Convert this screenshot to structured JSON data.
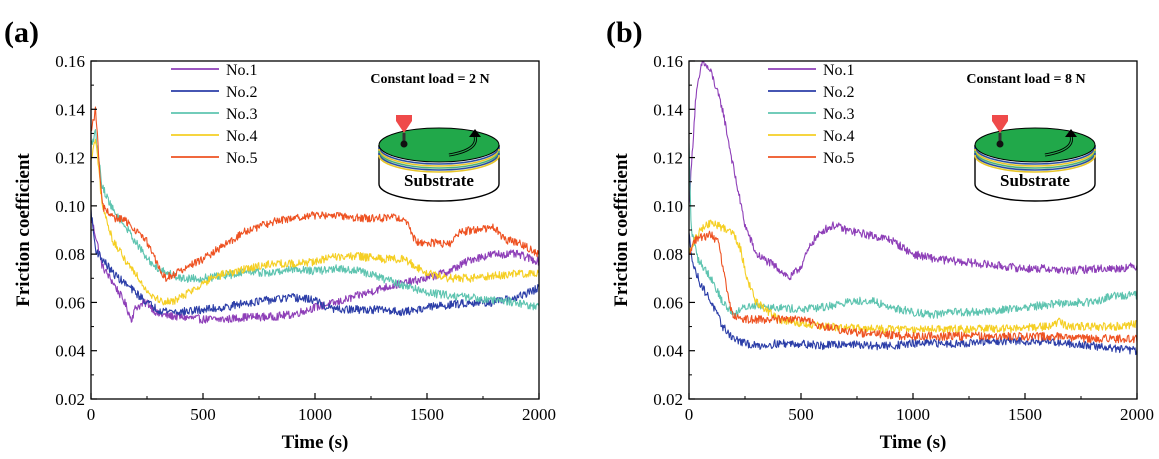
{
  "chart_data": [
    {
      "panel": "(a)",
      "type": "line",
      "xlabel": "Time (s)",
      "ylabel": "Friction coefficient",
      "xlim": [
        0,
        2000
      ],
      "ylim": [
        0.02,
        0.16
      ],
      "xticks": [
        0,
        500,
        1000,
        1500,
        2000
      ],
      "yticks": [
        0.02,
        0.04,
        0.06,
        0.08,
        0.1,
        0.12,
        0.14,
        0.16
      ],
      "ytick_labels": [
        "0.02",
        "0.04",
        "0.06",
        "0.08",
        "0.10",
        "0.12",
        "0.14",
        "0.16"
      ],
      "legend_position": "top-left",
      "inset": {
        "title": "Constant load = 2 N",
        "label": "Substrate"
      },
      "series": [
        {
          "name": "No.1",
          "color": "#8e3fb8",
          "x": [
            0,
            20,
            50,
            100,
            150,
            180,
            200,
            250,
            300,
            400,
            500,
            600,
            700,
            800,
            900,
            1000,
            1100,
            1200,
            1300,
            1400,
            1500,
            1600,
            1700,
            1800,
            1900,
            2000
          ],
          "y": [
            0.095,
            0.088,
            0.075,
            0.068,
            0.06,
            0.053,
            0.058,
            0.06,
            0.055,
            0.054,
            0.053,
            0.053,
            0.054,
            0.054,
            0.055,
            0.058,
            0.06,
            0.063,
            0.066,
            0.068,
            0.07,
            0.073,
            0.078,
            0.08,
            0.08,
            0.077
          ]
        },
        {
          "name": "No.2",
          "color": "#2c3ea8",
          "x": [
            0,
            20,
            50,
            100,
            150,
            200,
            250,
            300,
            400,
            500,
            600,
            700,
            800,
            900,
            1000,
            1050,
            1100,
            1200,
            1300,
            1400,
            1500,
            1600,
            1700,
            1800,
            1900,
            2000
          ],
          "y": [
            0.098,
            0.082,
            0.078,
            0.072,
            0.068,
            0.064,
            0.06,
            0.057,
            0.056,
            0.057,
            0.058,
            0.06,
            0.061,
            0.062,
            0.061,
            0.058,
            0.057,
            0.057,
            0.057,
            0.056,
            0.058,
            0.059,
            0.06,
            0.06,
            0.062,
            0.066
          ]
        },
        {
          "name": "No.3",
          "color": "#5ec4b0",
          "x": [
            0,
            20,
            50,
            100,
            150,
            200,
            250,
            300,
            400,
            500,
            600,
            700,
            800,
            900,
            1000,
            1100,
            1200,
            1300,
            1400,
            1500,
            1600,
            1700,
            1800,
            1900,
            2000
          ],
          "y": [
            0.125,
            0.13,
            0.108,
            0.098,
            0.092,
            0.085,
            0.078,
            0.074,
            0.07,
            0.07,
            0.071,
            0.073,
            0.072,
            0.074,
            0.073,
            0.074,
            0.073,
            0.07,
            0.067,
            0.064,
            0.063,
            0.062,
            0.061,
            0.06,
            0.058
          ]
        },
        {
          "name": "No.4",
          "color": "#f5cf24",
          "x": [
            0,
            20,
            50,
            100,
            150,
            200,
            250,
            300,
            350,
            400,
            500,
            600,
            700,
            800,
            900,
            1000,
            1100,
            1200,
            1300,
            1400,
            1500,
            1600,
            1700,
            1800,
            1900,
            2000
          ],
          "y": [
            0.118,
            0.128,
            0.1,
            0.085,
            0.078,
            0.072,
            0.065,
            0.061,
            0.06,
            0.062,
            0.068,
            0.072,
            0.074,
            0.076,
            0.076,
            0.077,
            0.079,
            0.079,
            0.078,
            0.078,
            0.072,
            0.07,
            0.07,
            0.071,
            0.072,
            0.072
          ]
        },
        {
          "name": "No.5",
          "color": "#ee5222",
          "x": [
            0,
            20,
            50,
            100,
            150,
            200,
            250,
            300,
            330,
            400,
            500,
            600,
            700,
            800,
            900,
            1000,
            1100,
            1200,
            1300,
            1400,
            1450,
            1500,
            1600,
            1650,
            1700,
            1800,
            1850,
            1900,
            2000
          ],
          "y": [
            0.13,
            0.14,
            0.1,
            0.095,
            0.094,
            0.09,
            0.085,
            0.075,
            0.07,
            0.073,
            0.078,
            0.084,
            0.09,
            0.093,
            0.095,
            0.096,
            0.096,
            0.095,
            0.095,
            0.095,
            0.085,
            0.085,
            0.084,
            0.089,
            0.09,
            0.091,
            0.086,
            0.085,
            0.08
          ]
        }
      ]
    },
    {
      "panel": "(b)",
      "type": "line",
      "xlabel": "Time (s)",
      "ylabel": "Friction coefficient",
      "xlim": [
        0,
        2000
      ],
      "ylim": [
        0.02,
        0.16
      ],
      "xticks": [
        0,
        500,
        1000,
        1500,
        2000
      ],
      "yticks": [
        0.02,
        0.04,
        0.06,
        0.08,
        0.1,
        0.12,
        0.14,
        0.16
      ],
      "ytick_labels": [
        "0.02",
        "0.04",
        "0.06",
        "0.08",
        "0.10",
        "0.12",
        "0.14",
        "0.16"
      ],
      "legend_position": "top-left",
      "inset": {
        "title": "Constant load = 8 N",
        "label": "Substrate"
      },
      "series": [
        {
          "name": "No.1",
          "color": "#8e3fb8",
          "x": [
            0,
            30,
            60,
            100,
            150,
            200,
            250,
            300,
            400,
            450,
            500,
            550,
            600,
            650,
            700,
            800,
            900,
            1000,
            1100,
            1200,
            1300,
            1400,
            1500,
            1600,
            1700,
            1800,
            1900,
            2000
          ],
          "y": [
            0.1,
            0.145,
            0.16,
            0.155,
            0.14,
            0.115,
            0.092,
            0.08,
            0.074,
            0.07,
            0.075,
            0.085,
            0.09,
            0.092,
            0.09,
            0.088,
            0.086,
            0.08,
            0.078,
            0.077,
            0.076,
            0.075,
            0.074,
            0.074,
            0.073,
            0.074,
            0.074,
            0.075
          ]
        },
        {
          "name": "No.2",
          "color": "#2c3ea8",
          "x": [
            0,
            20,
            50,
            100,
            150,
            200,
            250,
            300,
            400,
            500,
            600,
            700,
            800,
            900,
            1000,
            1200,
            1400,
            1600,
            1800,
            2000
          ],
          "y": [
            0.088,
            0.075,
            0.068,
            0.06,
            0.05,
            0.045,
            0.043,
            0.042,
            0.043,
            0.043,
            0.042,
            0.043,
            0.042,
            0.042,
            0.043,
            0.043,
            0.044,
            0.044,
            0.042,
            0.04
          ]
        },
        {
          "name": "No.3",
          "color": "#5ec4b0",
          "x": [
            0,
            10,
            40,
            100,
            150,
            200,
            250,
            300,
            400,
            500,
            600,
            700,
            800,
            900,
            1000,
            1100,
            1200,
            1300,
            1400,
            1500,
            1600,
            1700,
            1800,
            1900,
            2000
          ],
          "y": [
            0.125,
            0.09,
            0.078,
            0.07,
            0.06,
            0.055,
            0.058,
            0.059,
            0.058,
            0.057,
            0.058,
            0.06,
            0.061,
            0.058,
            0.056,
            0.055,
            0.056,
            0.056,
            0.057,
            0.058,
            0.059,
            0.06,
            0.06,
            0.063,
            0.063
          ]
        },
        {
          "name": "No.4",
          "color": "#f5cf24",
          "x": [
            0,
            20,
            60,
            100,
            150,
            200,
            230,
            260,
            300,
            400,
            500,
            600,
            800,
            1000,
            1200,
            1400,
            1600,
            1650,
            1700,
            1800,
            1900,
            2000
          ],
          "y": [
            0.08,
            0.085,
            0.091,
            0.093,
            0.091,
            0.089,
            0.082,
            0.07,
            0.06,
            0.053,
            0.051,
            0.05,
            0.049,
            0.049,
            0.049,
            0.049,
            0.05,
            0.052,
            0.05,
            0.05,
            0.05,
            0.051
          ]
        },
        {
          "name": "No.5",
          "color": "#ee5222",
          "x": [
            0,
            20,
            50,
            100,
            130,
            150,
            180,
            200,
            250,
            300,
            400,
            500,
            600,
            700,
            800,
            1000,
            1200,
            1400,
            1600,
            1800,
            2000
          ],
          "y": [
            0.08,
            0.085,
            0.087,
            0.088,
            0.085,
            0.075,
            0.06,
            0.054,
            0.053,
            0.053,
            0.053,
            0.053,
            0.05,
            0.048,
            0.047,
            0.046,
            0.046,
            0.046,
            0.046,
            0.045,
            0.045
          ]
        }
      ]
    }
  ]
}
